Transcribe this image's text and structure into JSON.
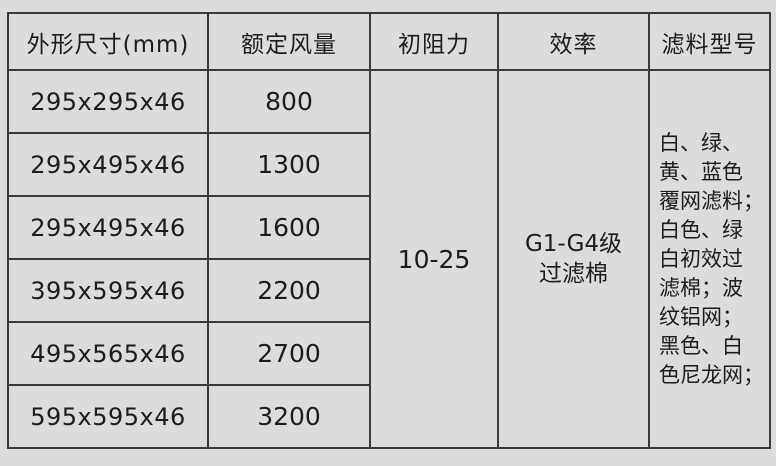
{
  "colors": {
    "background": "#dcdcdc",
    "border": "#3a3a3a",
    "text": "#1c1c1c"
  },
  "table": {
    "headers": {
      "dimensions": "外形尺寸(mm)",
      "airflow": "额定风量",
      "initial_resistance": "初阻力",
      "efficiency": "效率",
      "filter_material": "滤料型号"
    },
    "rows": [
      {
        "dimensions": "295x295x46",
        "airflow": "800"
      },
      {
        "dimensions": "295x495x46",
        "airflow": "1300"
      },
      {
        "dimensions": "295x495x46",
        "airflow": "1600"
      },
      {
        "dimensions": "395x595x46",
        "airflow": "2200"
      },
      {
        "dimensions": "495x565x46",
        "airflow": "2700"
      },
      {
        "dimensions": "595x595x46",
        "airflow": "3200"
      }
    ],
    "merged": {
      "initial_resistance": "10-25",
      "efficiency": "G1-G4级\n过滤棉",
      "filter_material": "白、绿、\n黄、蓝色\n覆网滤料；\n白色、绿\n白初效过\n滤棉；波\n纹铝网；\n黑色、白\n色尼龙网；"
    }
  }
}
